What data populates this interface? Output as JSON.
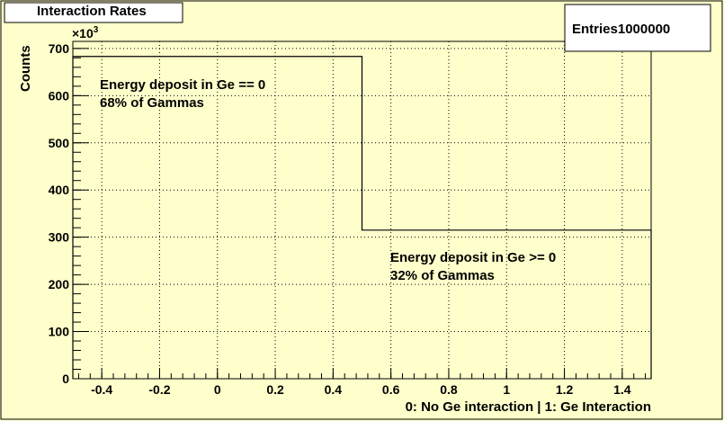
{
  "title": "Interaction Rates",
  "stats_box": {
    "label": "Entries",
    "value": "1000000"
  },
  "chart_data": {
    "type": "bar",
    "title": "Interaction Rates",
    "xlabel": "0: No Ge interaction | 1: Ge Interaction",
    "ylabel": "Counts",
    "y_multiplier_label": "×10",
    "y_multiplier_exp": "3",
    "xlim": [
      -0.5,
      1.5
    ],
    "ylim": [
      0,
      715
    ],
    "x_ticks": [
      "-0.4",
      "-0.2",
      "0",
      "0.2",
      "0.4",
      "0.6",
      "0.8",
      "1",
      "1.2",
      "1.4"
    ],
    "x_tick_values": [
      -0.4,
      -0.2,
      0,
      0.2,
      0.4,
      0.6,
      0.8,
      1.0,
      1.2,
      1.4
    ],
    "y_ticks": [
      "0",
      "100",
      "200",
      "300",
      "400",
      "500",
      "600",
      "700"
    ],
    "y_tick_values": [
      0,
      100,
      200,
      300,
      400,
      500,
      600,
      700
    ],
    "bins": [
      {
        "x_low": -0.5,
        "x_high": 0.5,
        "value": 683
      },
      {
        "x_low": 0.5,
        "x_high": 1.5,
        "value": 315
      }
    ],
    "grid": true,
    "annotations": [
      {
        "lines": [
          "Energy deposit in Ge == 0",
          "68% of Gammas"
        ]
      },
      {
        "lines": [
          "Energy deposit in Ge >= 0",
          "32% of Gammas"
        ]
      }
    ]
  }
}
